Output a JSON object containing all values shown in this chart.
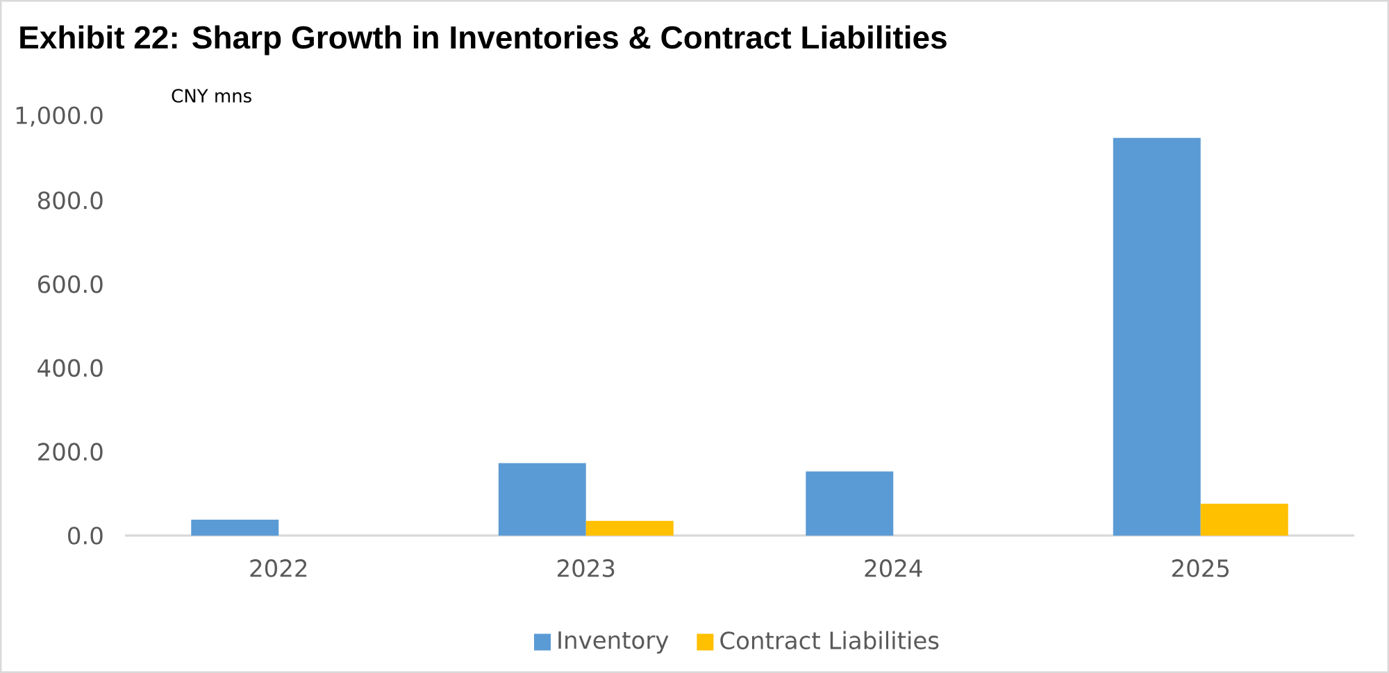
{
  "chart_data": {
    "type": "bar",
    "title": "Exhibit 22: Sharp Growth in Inventories & Contract Liabilities",
    "ylabel": "CNY mns",
    "categories": [
      "2022",
      "2023",
      "2024",
      "2025"
    ],
    "series": [
      {
        "name": "Inventory",
        "color": "#5b9bd5",
        "values": [
          38,
          173,
          153,
          949
        ]
      },
      {
        "name": "Contract Liabilities",
        "color": "#ffc000",
        "values": [
          null,
          35,
          null,
          76
        ]
      }
    ],
    "ylim": [
      0,
      1000
    ],
    "yticks": [
      {
        "value": 0,
        "label": "0.0"
      },
      {
        "value": 200,
        "label": "200.0"
      },
      {
        "value": 400,
        "label": "400.0"
      },
      {
        "value": 600,
        "label": "600.0"
      },
      {
        "value": 800,
        "label": "800.0"
      },
      {
        "value": 1000,
        "label": "1,000.0"
      }
    ],
    "legend": "bottom",
    "grid": false
  }
}
